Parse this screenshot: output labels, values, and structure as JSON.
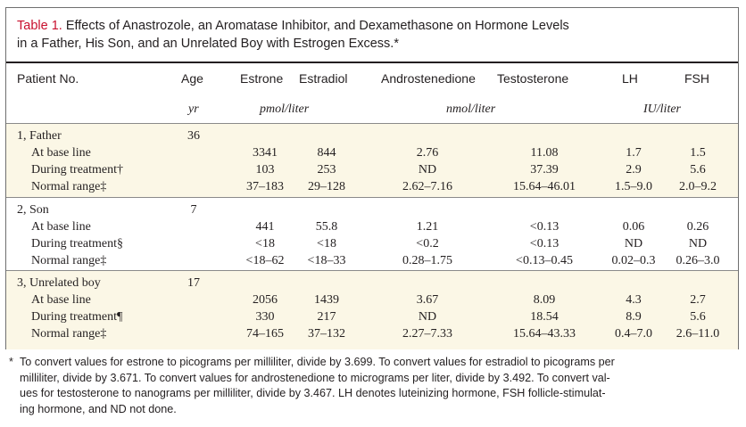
{
  "caption": {
    "table_number": "Table 1.",
    "title_line1": "Effects of Anastrozole, an Aromatase Inhibitor, and Dexamethasone on Hormone Levels",
    "title_line2": "in a Father, His Son, and an Unrelated Boy with Estrogen Excess.*"
  },
  "columns": {
    "patient": "Patient No.",
    "age": "Age",
    "estrone": "Estrone",
    "estradiol": "Estradiol",
    "androstenedione": "Androstenedione",
    "testosterone": "Testosterone",
    "lh": "LH",
    "fsh": "FSH"
  },
  "units": {
    "age": "yr",
    "estrogens": "pmol/liter",
    "androgens": "nmol/liter",
    "gonadotropins": "IU/liter"
  },
  "groups": [
    {
      "label": "1, Father",
      "age": "36",
      "rows": [
        {
          "label": "At base line",
          "estrone": "3341",
          "estradiol": "844",
          "androstenedione": "2.76",
          "testosterone": "11.08",
          "lh": "1.7",
          "fsh": "1.5"
        },
        {
          "label": "During treatment†",
          "estrone": "103",
          "estradiol": "253",
          "androstenedione": "ND",
          "testosterone": "37.39",
          "lh": "2.9",
          "fsh": "5.6"
        },
        {
          "label": "Normal range‡",
          "estrone": "37–183",
          "estradiol": "29–128",
          "androstenedione": "2.62–7.16",
          "testosterone": "15.64–46.01",
          "lh": "1.5–9.0",
          "fsh": "2.0–9.2"
        }
      ]
    },
    {
      "label": "2, Son",
      "age": "7",
      "rows": [
        {
          "label": "At base line",
          "estrone": "441",
          "estradiol": "55.8",
          "androstenedione": "1.21",
          "testosterone": "<0.13",
          "lh": "0.06",
          "fsh": "0.26"
        },
        {
          "label": "During treatment§",
          "estrone": "<18",
          "estradiol": "<18",
          "androstenedione": "<0.2",
          "testosterone": "<0.13",
          "lh": "ND",
          "fsh": "ND"
        },
        {
          "label": "Normal range‡",
          "estrone": "<18–62",
          "estradiol": "<18–33",
          "androstenedione": "0.28–1.75",
          "testosterone": "<0.13–0.45",
          "lh": "0.02–0.3",
          "fsh": "0.26–3.0"
        }
      ]
    },
    {
      "label": "3, Unrelated boy",
      "age": "17",
      "rows": [
        {
          "label": "At base line",
          "estrone": "2056",
          "estradiol": "1439",
          "androstenedione": "3.67",
          "testosterone": "8.09",
          "lh": "4.3",
          "fsh": "2.7"
        },
        {
          "label": "During treatment¶",
          "estrone": "330",
          "estradiol": "217",
          "androstenedione": "ND",
          "testosterone": "18.54",
          "lh": "8.9",
          "fsh": "5.6"
        },
        {
          "label": "Normal range‡",
          "estrone": "74–165",
          "estradiol": "37–132",
          "androstenedione": "2.27–7.33",
          "testosterone": "15.64–43.33",
          "lh": "0.4–7.0",
          "fsh": "2.6–11.0"
        }
      ]
    }
  ],
  "footnote": {
    "marker": "*",
    "line1": "To convert values for estrone to picograms per milliliter, divide by 3.699. To convert values for estradiol to picograms per",
    "line2": "milliliter, divide by 3.671. To convert values for androstenedione to micrograms per liter, divide by 3.492. To convert val-",
    "line3": "ues for testosterone to nanograms per milliliter, divide by 3.467. LH denotes luteinizing hormone, FSH follicle-stimulat-",
    "line4": "ing hormone, and ND not done."
  },
  "colors": {
    "table_number": "#c8102e",
    "shaded_row": "#fbf7e6",
    "text": "#231f20"
  }
}
